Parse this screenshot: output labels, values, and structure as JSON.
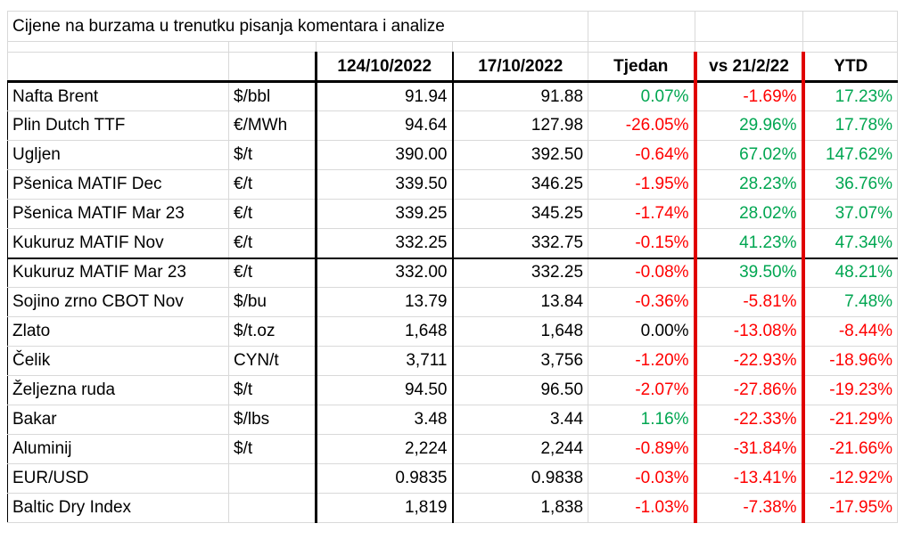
{
  "title": "Cijene na burzama u trenutku pisanja komentara i analize",
  "headers": {
    "name": "",
    "unit": "",
    "price1": "124/10/2022",
    "price2": "17/10/2022",
    "week": "Tjedan",
    "vs": "vs 21/2/22",
    "ytd": "YTD"
  },
  "rows": [
    {
      "name": "Nafta Brent",
      "unit": "$/bbl",
      "p1": "91.94",
      "p2": "91.88",
      "week": "0.07%",
      "vs": "-1.69%",
      "ytd": "17.23%"
    },
    {
      "name": "Plin Dutch TTF",
      "unit": "€/MWh",
      "p1": "94.64",
      "p2": "127.98",
      "week": "-26.05%",
      "vs": "29.96%",
      "ytd": "17.78%"
    },
    {
      "name": "Ugljen",
      "unit": "$/t",
      "p1": "390.00",
      "p2": "392.50",
      "week": "-0.64%",
      "vs": "67.02%",
      "ytd": "147.62%"
    },
    {
      "name": "Pšenica MATIF Dec",
      "unit": "€/t",
      "p1": "339.50",
      "p2": "346.25",
      "week": "-1.95%",
      "vs": "28.23%",
      "ytd": "36.76%"
    },
    {
      "name": "Pšenica MATIF Mar 23",
      "unit": "€/t",
      "p1": "339.25",
      "p2": "345.25",
      "week": "-1.74%",
      "vs": "28.02%",
      "ytd": "37.07%"
    },
    {
      "name": "Kukuruz MATIF Nov",
      "unit": "€/t",
      "p1": "332.25",
      "p2": "332.75",
      "week": "-0.15%",
      "vs": "41.23%",
      "ytd": "47.34%"
    },
    {
      "name": "Kukuruz MATIF Mar 23",
      "unit": "€/t",
      "p1": "332.00",
      "p2": "332.25",
      "week": "-0.08%",
      "vs": "39.50%",
      "ytd": "48.21%"
    },
    {
      "name": "Sojino zrno CBOT Nov",
      "unit": "$/bu",
      "p1": "13.79",
      "p2": "13.84",
      "week": "-0.36%",
      "vs": "-5.81%",
      "ytd": "7.48%"
    },
    {
      "name": "Zlato",
      "unit": "$/t.oz",
      "p1": "1,648",
      "p2": "1,648",
      "week": "0.00%",
      "vs": "-13.08%",
      "ytd": "-8.44%"
    },
    {
      "name": "Čelik",
      "unit": "CYN/t",
      "p1": "3,711",
      "p2": "3,756",
      "week": "-1.20%",
      "vs": "-22.93%",
      "ytd": "-18.96%"
    },
    {
      "name": "Željezna ruda",
      "unit": "$/t",
      "p1": "94.50",
      "p2": "96.50",
      "week": "-2.07%",
      "vs": "-27.86%",
      "ytd": "-19.23%"
    },
    {
      "name": "Bakar",
      "unit": "$/lbs",
      "p1": "3.48",
      "p2": "3.44",
      "week": "1.16%",
      "vs": "-22.33%",
      "ytd": "-21.29%"
    },
    {
      "name": "Aluminij",
      "unit": "$/t",
      "p1": "2,224",
      "p2": "2,244",
      "week": "-0.89%",
      "vs": "-31.84%",
      "ytd": "-21.66%"
    },
    {
      "name": "EUR/USD",
      "unit": "",
      "p1": "0.9835",
      "p2": "0.9838",
      "week": "-0.03%",
      "vs": "-13.41%",
      "ytd": "-12.92%"
    },
    {
      "name": "Baltic Dry Index",
      "unit": "",
      "p1": "1,819",
      "p2": "1,838",
      "week": "-1.03%",
      "vs": "-7.38%",
      "ytd": "-17.95%"
    }
  ],
  "colors": {
    "positive": "#00a651",
    "negative": "#ff0000",
    "neutral": "#000000",
    "highlight_border": "#e00000"
  }
}
